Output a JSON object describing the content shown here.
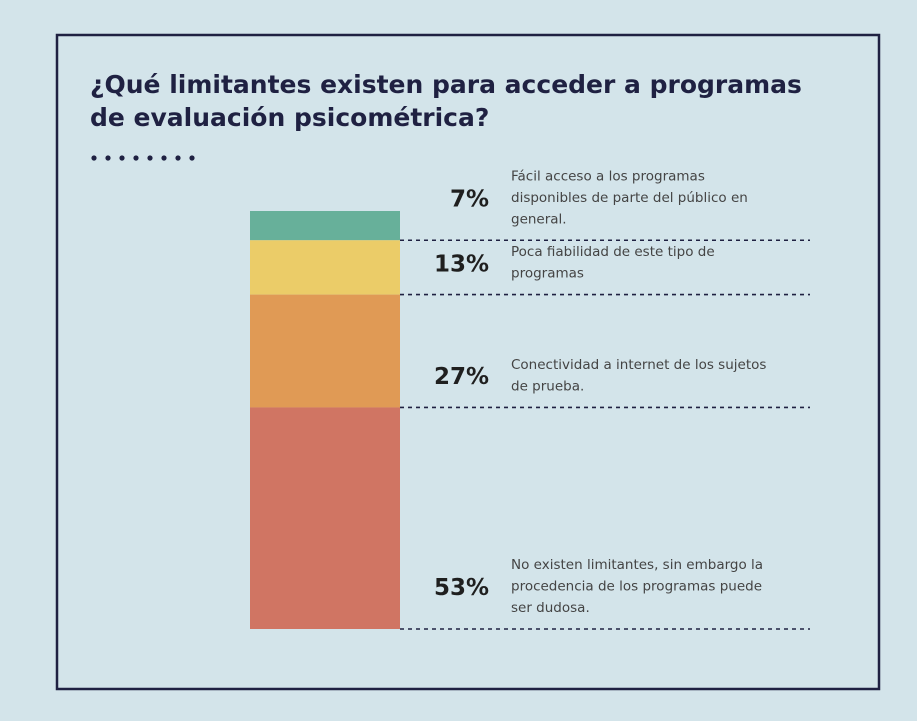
{
  "chart_data": {
    "type": "stacked-column",
    "title_lines": [
      "¿Qué limitantes existen para acceder a programas",
      "de evaluación psicométrica?"
    ],
    "categories": [
      [
        "Fácil acceso a los programas",
        "disponibles de parte del público en",
        "general."
      ],
      [
        "Poca fiabilidad de este tipo de",
        "programas"
      ],
      [
        "Conectividad a internet de los sujetos",
        "de prueba."
      ],
      [
        "No existen limitantes, sin embargo la",
        "procedencia de los programas puede",
        "ser dudosa."
      ]
    ],
    "values": [
      7,
      13,
      27,
      53
    ],
    "value_labels": [
      "7%",
      "13%",
      "27%",
      "53%"
    ],
    "colors": [
      "#67b09a",
      "#ebcc68",
      "#e09a55",
      "#d07563"
    ],
    "ylim": [
      0,
      100
    ]
  }
}
